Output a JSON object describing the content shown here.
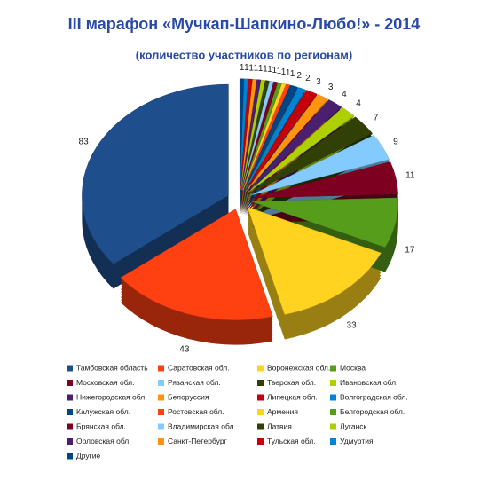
{
  "chart_data": {
    "type": "pie",
    "title": "III марафон «Мучкап-Шапкино-Любо!» - 2014",
    "subtitle": "(количество участников по регионам)",
    "categories": [
      "Тамбовская область",
      "Саратовская обл.",
      "Воронежская обл.",
      "Москва",
      "Московская обл.",
      "Рязанская обл.",
      "Тверская обл.",
      "Ивановская обл.",
      "Нижегородская обл.",
      "Белоруссия",
      "Липецкая обл.",
      "Волгоградская обл.",
      "Калужская обл.",
      "Ростовская обл.",
      "Армения",
      "Белгородская обл.",
      "Брянская обл.",
      "Владимирская обл",
      "Латвия",
      "Луганск",
      "Орловская обл.",
      "Санкт-Петербург",
      "Тульская обл.",
      "Удмуртия",
      "Другие"
    ],
    "values": [
      83,
      43,
      33,
      17,
      11,
      9,
      7,
      4,
      4,
      3,
      3,
      2,
      2,
      1,
      1,
      1,
      1,
      1,
      1,
      1,
      1,
      1,
      1,
      1,
      1
    ],
    "colors": [
      "#1f4e8c",
      "#ff4010",
      "#ffd320",
      "#579d1c",
      "#7e0021",
      "#83caff",
      "#314004",
      "#aecf00",
      "#4b1f6f",
      "#ff950e",
      "#c5000b",
      "#0084d1",
      "#004586",
      "#ff420e",
      "#ffd320",
      "#579d1c",
      "#7e0021",
      "#83caff",
      "#314004",
      "#aecf00",
      "#4b1f6f",
      "#ff950e",
      "#c5000b",
      "#0084d1",
      "#004586"
    ],
    "legend": "bottom"
  }
}
